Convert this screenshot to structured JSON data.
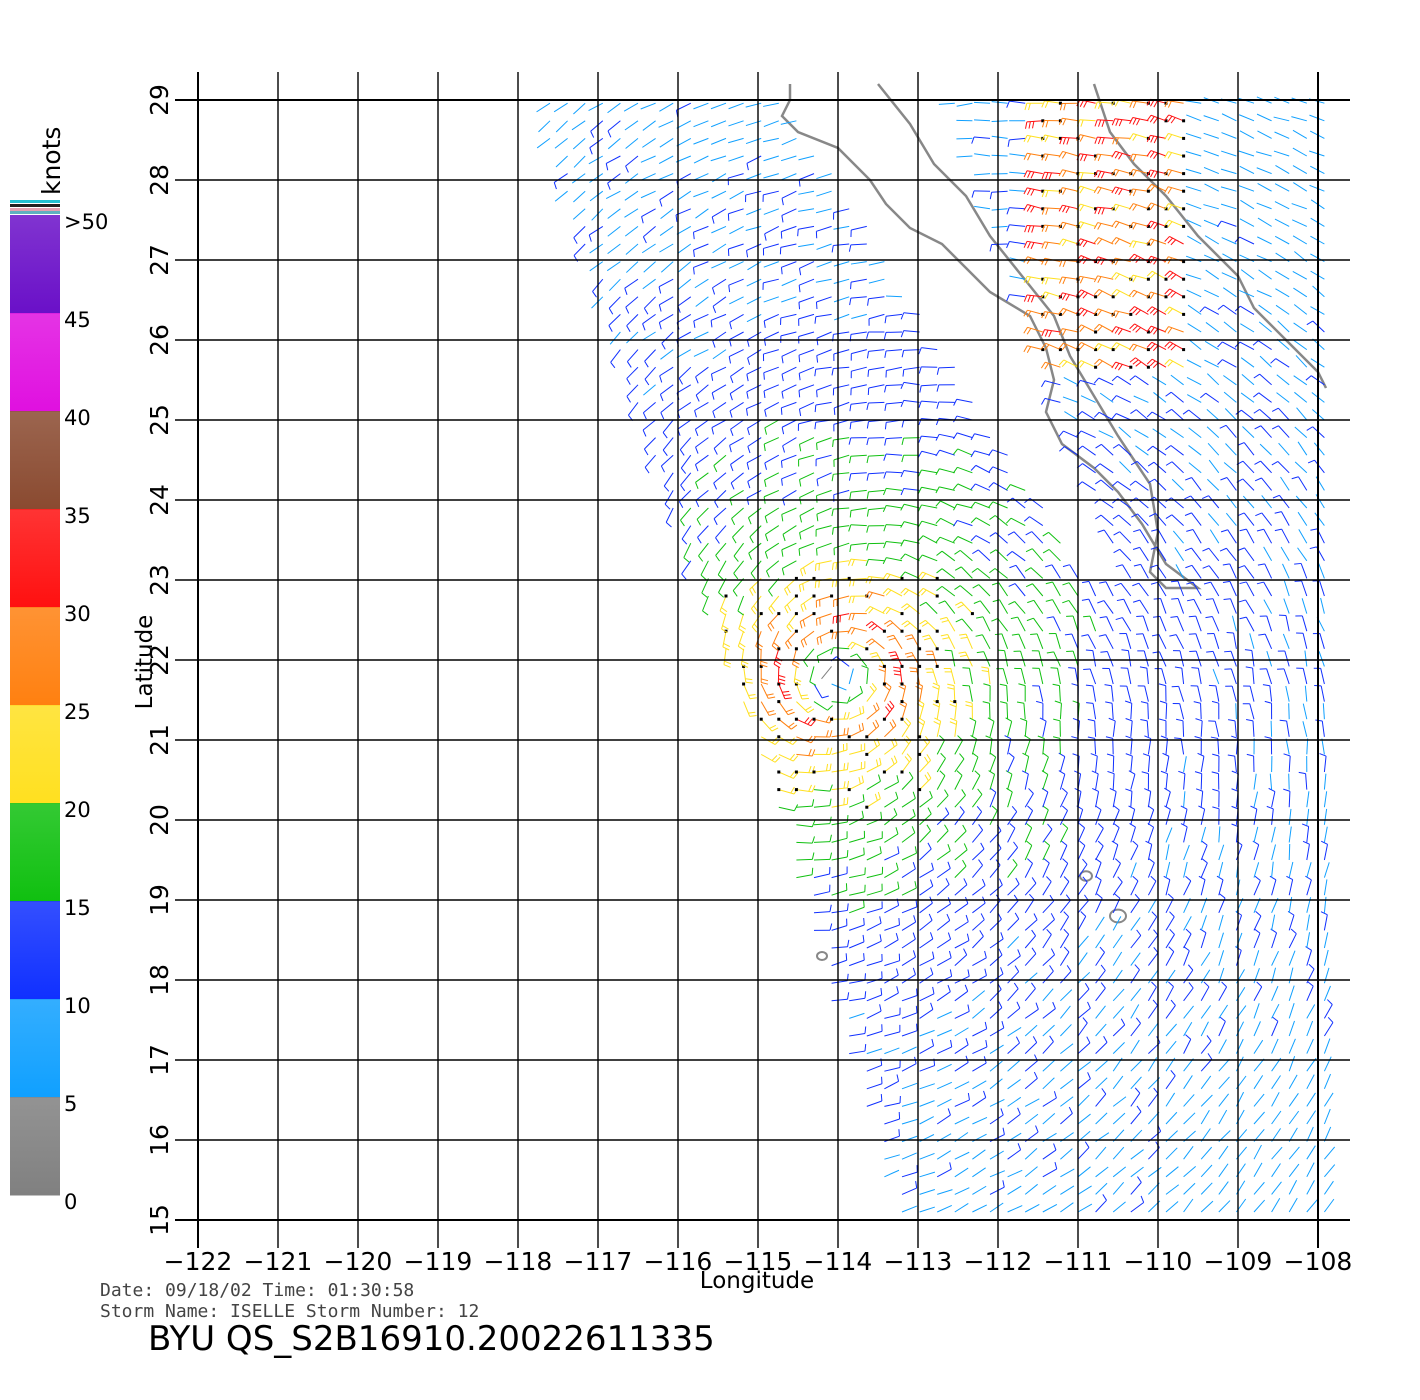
{
  "map": {
    "xlabel": "Longitude",
    "ylabel": "Latitude",
    "lon_range": [
      -122,
      -108
    ],
    "lat_range": [
      15,
      29
    ],
    "lon_ticks": [
      "-122",
      "-121",
      "-120",
      "-119",
      "-118",
      "-117",
      "-116",
      "-115",
      "-114",
      "-113",
      "-112",
      "-111",
      "-110",
      "-109",
      "-108"
    ],
    "lat_ticks": [
      "15",
      "16",
      "17",
      "18",
      "19",
      "20",
      "21",
      "22",
      "23",
      "24",
      "25",
      "26",
      "27",
      "28",
      "29"
    ],
    "grid": true,
    "storm_center": {
      "lon": -114.0,
      "lat": 21.8
    },
    "colors": {
      "coastline": "#888888",
      "grid": "#000000"
    }
  },
  "colorbar": {
    "unit_label": "knots",
    "tick_labels": [
      ">50",
      "45",
      "40",
      "35",
      "30",
      "25",
      "20",
      "15",
      "10",
      "5",
      "0"
    ],
    "bands": [
      {
        "range": "45-50",
        "color": "#6a10c8"
      },
      {
        "range": "40-45",
        "color": "#e010e0"
      },
      {
        "range": "35-40",
        "color": "#8a4a30"
      },
      {
        "range": "30-35",
        "color": "#ff1010"
      },
      {
        "range": "25-30",
        "color": "#ff8010"
      },
      {
        "range": "20-25",
        "color": "#ffe020"
      },
      {
        "range": "15-20",
        "color": "#10c010"
      },
      {
        "range": "10-15",
        "color": "#1030ff"
      },
      {
        "range": "5-10",
        "color": "#10a0ff"
      },
      {
        "range": "0-5",
        "color": "#808080"
      }
    ]
  },
  "metadata": {
    "date_line": "Date: 09/18/02   Time: 01:30:58",
    "storm_line": "Storm Name: ISELLE   Storm Number: 12",
    "product_id": "BYU QS_S2B16910.20022611335"
  }
}
